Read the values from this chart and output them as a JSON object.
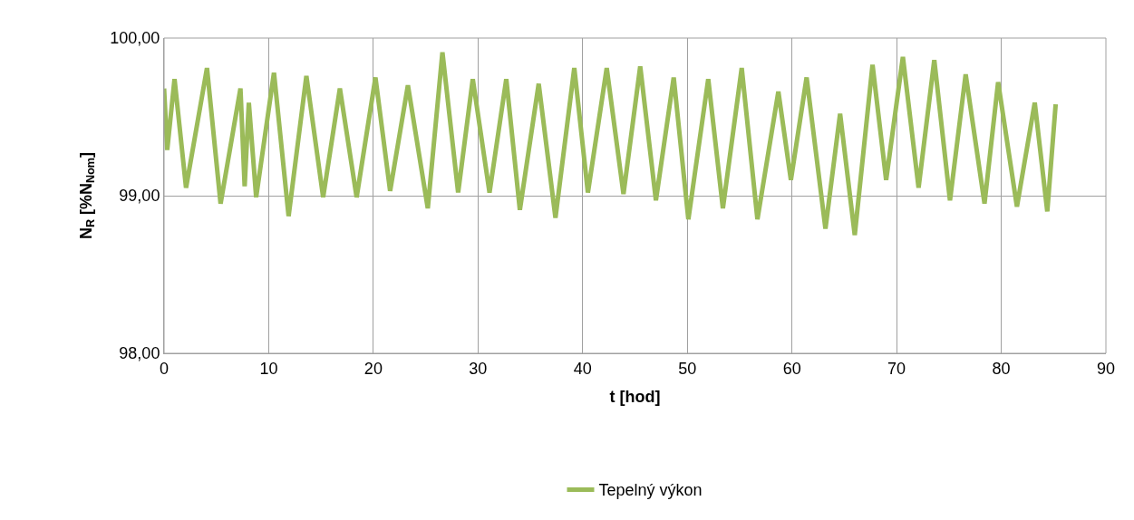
{
  "chart_data": {
    "type": "line",
    "xlabel": "t [hod]",
    "ylabel": "N$_{R}$ [%N$_{Nom}$]",
    "xlim": [
      0,
      90
    ],
    "xticks": [
      0,
      10,
      20,
      30,
      40,
      50,
      60,
      70,
      80,
      90
    ],
    "ylim": [
      98,
      100
    ],
    "yticks": [
      {
        "value": 98,
        "label": "98,00"
      },
      {
        "value": 99,
        "label": "99,00"
      },
      {
        "value": 100,
        "label": "100,00"
      }
    ],
    "grid": true,
    "legend": "bottom",
    "marker": "none",
    "line_style": "solid",
    "series": [
      {
        "name": "Tepelný výkon",
        "color": "#9bbb59",
        "x": [
          0,
          0.3,
          1.0,
          2.1,
          4.1,
          5.4,
          7.3,
          7.7,
          8.1,
          8.8,
          10.5,
          11.9,
          13.6,
          15.2,
          16.8,
          18.4,
          20.2,
          21.6,
          23.3,
          25.2,
          26.6,
          28.1,
          29.5,
          31.1,
          32.7,
          34.0,
          35.8,
          37.4,
          39.2,
          40.5,
          42.3,
          43.9,
          45.5,
          47.0,
          48.7,
          50.1,
          52.0,
          53.4,
          55.2,
          56.7,
          58.7,
          59.9,
          61.4,
          63.2,
          64.6,
          66.0,
          67.7,
          69.0,
          70.6,
          72.1,
          73.6,
          75.1,
          76.6,
          78.4,
          79.7,
          81.5,
          83.2,
          84.4,
          85.2
        ],
        "values": [
          99.68,
          99.29,
          99.74,
          99.05,
          99.81,
          98.95,
          99.68,
          99.06,
          99.59,
          98.99,
          99.78,
          98.87,
          99.76,
          98.99,
          99.68,
          98.99,
          99.75,
          99.03,
          99.7,
          98.92,
          99.91,
          99.02,
          99.74,
          99.02,
          99.74,
          98.91,
          99.71,
          98.86,
          99.81,
          99.02,
          99.81,
          99.01,
          99.82,
          98.97,
          99.75,
          98.85,
          99.74,
          98.92,
          99.81,
          98.85,
          99.66,
          99.1,
          99.75,
          98.79,
          99.52,
          98.75,
          99.83,
          99.1,
          99.88,
          99.05,
          99.86,
          98.97,
          99.77,
          98.95,
          99.72,
          98.93,
          99.59,
          98.9,
          99.58
        ]
      }
    ]
  }
}
